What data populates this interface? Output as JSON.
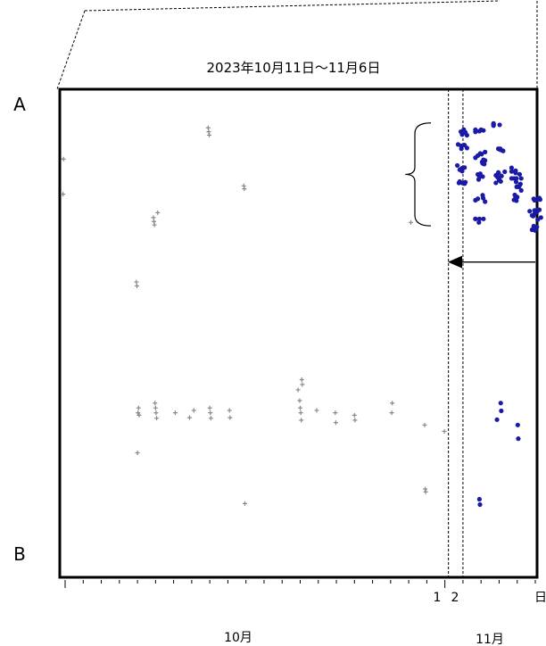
{
  "chart_data": {
    "type": "scatter",
    "title": "2023年10月11日～11月6日",
    "axis_end_labels": {
      "top": "A",
      "bottom": "B"
    },
    "x_unit_label": "日",
    "x_tick_labels": [
      "1",
      "2"
    ],
    "month_labels": [
      "10月",
      "11月"
    ],
    "xlim": [
      "2023-10-11",
      "2023-11-06"
    ],
    "ylim": [
      0,
      100
    ],
    "grid": false,
    "legend": "none",
    "cutoff_dates": [
      "2023-11-01",
      "2023-11-02"
    ],
    "colors": {
      "before": "#888888",
      "after": "#1a1aa6"
    },
    "series": [
      {
        "marker": "plus",
        "color": "#888888",
        "points": [
          [
            "2023-10-11",
            21.5
          ],
          [
            "2023-10-11",
            14.3
          ],
          [
            "2023-10-15",
            39.5
          ],
          [
            "2023-10-15",
            40.3
          ],
          [
            "2023-10-15",
            74.5
          ],
          [
            "2023-10-15",
            66.3
          ],
          [
            "2023-10-15",
            65.3
          ],
          [
            "2023-10-15",
            66.8
          ],
          [
            "2023-10-16",
            25.3
          ],
          [
            "2023-10-16",
            26.3
          ],
          [
            "2023-10-16",
            27.1
          ],
          [
            "2023-10-16",
            27.8
          ],
          [
            "2023-10-16",
            64.3
          ],
          [
            "2023-10-16",
            65.3
          ],
          [
            "2023-10-16",
            66.3
          ],
          [
            "2023-10-16",
            67.4
          ],
          [
            "2023-10-17",
            66.3
          ],
          [
            "2023-10-18",
            65.8
          ],
          [
            "2023-10-18",
            67.3
          ],
          [
            "2023-10-19",
            7.9
          ],
          [
            "2023-10-19",
            8.7
          ],
          [
            "2023-10-19",
            9.4
          ],
          [
            "2023-10-19",
            65.3
          ],
          [
            "2023-10-19",
            66.3
          ],
          [
            "2023-10-19",
            67.4
          ],
          [
            "2023-10-20",
            65.8
          ],
          [
            "2023-10-20",
            67.3
          ],
          [
            "2023-10-21",
            19.8
          ],
          [
            "2023-10-21",
            20.4
          ],
          [
            "2023-10-21",
            84.9
          ],
          [
            "2023-10-24",
            63.8
          ],
          [
            "2023-10-24",
            65.3
          ],
          [
            "2023-10-24",
            66.3
          ],
          [
            "2023-10-24",
            67.8
          ],
          [
            "2023-10-24",
            59.5
          ],
          [
            "2023-10-24",
            60.5
          ],
          [
            "2023-10-24",
            61.6
          ],
          [
            "2023-10-25",
            65.8
          ],
          [
            "2023-10-26",
            66.3
          ],
          [
            "2023-10-26",
            68.3
          ],
          [
            "2023-10-27",
            66.8
          ],
          [
            "2023-10-27",
            67.8
          ],
          [
            "2023-10-29",
            66.3
          ],
          [
            "2023-10-29",
            64.3
          ],
          [
            "2023-10-30",
            27.3
          ],
          [
            "2023-10-31",
            68.8
          ],
          [
            "2023-10-31",
            81.9
          ],
          [
            "2023-10-31",
            82.5
          ],
          [
            "2023-11-01",
            70.1
          ]
        ]
      },
      {
        "marker": "dot",
        "color": "#1a1aa6",
        "points": [
          [
            "2023-11-02",
            8.7
          ],
          [
            "2023-11-02",
            11.6
          ],
          [
            "2023-11-02",
            16.2
          ],
          [
            "2023-11-02",
            19.2
          ],
          [
            "2023-11-03",
            8.3
          ],
          [
            "2023-11-03",
            13.3
          ],
          [
            "2023-11-03",
            14.9
          ],
          [
            "2023-11-03",
            17.9
          ],
          [
            "2023-11-03",
            22.3
          ],
          [
            "2023-11-03",
            27.3
          ],
          [
            "2023-11-03",
            84.0
          ],
          [
            "2023-11-03",
            85.1
          ],
          [
            "2023-11-04",
            17.2
          ],
          [
            "2023-11-04",
            18.6
          ],
          [
            "2023-11-04",
            7.3
          ],
          [
            "2023-11-04",
            12.2
          ],
          [
            "2023-11-04",
            64.3
          ],
          [
            "2023-11-04",
            65.9
          ],
          [
            "2023-11-04",
            67.7
          ],
          [
            "2023-11-05",
            16.7
          ],
          [
            "2023-11-05",
            19.0
          ],
          [
            "2023-11-05",
            20.0
          ],
          [
            "2023-11-05",
            22.1
          ],
          [
            "2023-11-05",
            68.8
          ],
          [
            "2023-11-05",
            71.6
          ],
          [
            "2023-11-06",
            22.6
          ],
          [
            "2023-11-06",
            24.7
          ],
          [
            "2023-11-06",
            26.0
          ],
          [
            "2023-11-06",
            28.5
          ]
        ]
      }
    ],
    "annotations": [
      {
        "type": "brace",
        "date": "2023-10-31",
        "y_range": [
          6.9,
          28.0
        ]
      },
      {
        "type": "arrow",
        "direction": "left",
        "y": 35.4
      }
    ]
  }
}
